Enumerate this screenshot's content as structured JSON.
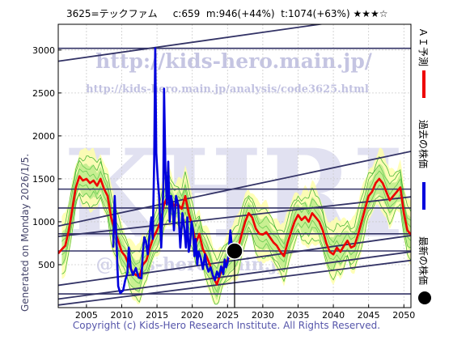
{
  "header": {
    "title": "3625=テックファム",
    "current": "c:659",
    "mid": "m:946(+44%)",
    "top": "t:1074(+63%)",
    "stars": "★★★☆"
  },
  "watermarks": {
    "url_main": "http://kids-hero.main.jp/",
    "url_sub": "http://kids-hero.main.jp/analysis/code3625.html",
    "big": "KHRI",
    "lower": "@kids-hero.main.jp"
  },
  "side_legend": {
    "ai": "ＡＩ予測",
    "past": "過去の株価",
    "latest": "最新の株価"
  },
  "generated": "Generated on Monday 2026/1/5.",
  "footer": "Copyright (c) Kids-Hero Research Institute. All Rights Reserved.",
  "colors": {
    "ai_prediction": "#ee0000",
    "past_price": "#0000dd",
    "band_fill": "#ffffaa",
    "band_lines": "#22aa22",
    "trend_lines": "#333366",
    "latest_marker": "#000000"
  },
  "chart_data": {
    "type": "line",
    "xlim": [
      2001,
      2051
    ],
    "ylim": [
      0,
      3300
    ],
    "x_ticks": [
      2005,
      2010,
      2015,
      2020,
      2025,
      2030,
      2035,
      2040,
      2045,
      2050
    ],
    "y_ticks": [
      500,
      1000,
      1500,
      2000,
      2500,
      3000
    ],
    "grid": true,
    "latest": {
      "x": 2026.0,
      "y": 659
    },
    "horizontal_levels": [
      160,
      660,
      860,
      1160,
      1380,
      3020
    ],
    "trend_lines": [
      {
        "x1": 2001,
        "y1": 2870,
        "x2": 2051,
        "y2": 3450
      },
      {
        "x1": 2001,
        "y1": 950,
        "x2": 2051,
        "y2": 1820
      },
      {
        "x1": 2001,
        "y1": 830,
        "x2": 2051,
        "y2": 1290
      },
      {
        "x1": 2001,
        "y1": 260,
        "x2": 2051,
        "y2": 840
      },
      {
        "x1": 2001,
        "y1": 100,
        "x2": 2051,
        "y2": 650
      },
      {
        "x1": 2001,
        "y1": 30,
        "x2": 2051,
        "y2": 550
      }
    ],
    "series": [
      {
        "name": "過去の株価",
        "color": "#0000dd",
        "points": [
          [
            2008.8,
            700
          ],
          [
            2009.0,
            1300
          ],
          [
            2009.2,
            900
          ],
          [
            2009.5,
            250
          ],
          [
            2009.8,
            170
          ],
          [
            2010.2,
            200
          ],
          [
            2010.5,
            320
          ],
          [
            2010.8,
            400
          ],
          [
            2011.0,
            700
          ],
          [
            2011.3,
            450
          ],
          [
            2011.6,
            380
          ],
          [
            2012.0,
            460
          ],
          [
            2012.4,
            350
          ],
          [
            2012.8,
            340
          ],
          [
            2013.0,
            650
          ],
          [
            2013.2,
            820
          ],
          [
            2013.4,
            780
          ],
          [
            2013.7,
            620
          ],
          [
            2014.0,
            900
          ],
          [
            2014.2,
            1050
          ],
          [
            2014.4,
            800
          ],
          [
            2014.6,
            1700
          ],
          [
            2014.75,
            3020
          ],
          [
            2014.9,
            1800
          ],
          [
            2015.1,
            1500
          ],
          [
            2015.3,
            1300
          ],
          [
            2015.6,
            700
          ],
          [
            2015.9,
            1400
          ],
          [
            2016.0,
            2550
          ],
          [
            2016.2,
            1600
          ],
          [
            2016.4,
            1200
          ],
          [
            2016.6,
            1700
          ],
          [
            2016.8,
            1000
          ],
          [
            2017.0,
            1300
          ],
          [
            2017.2,
            1200
          ],
          [
            2017.4,
            900
          ],
          [
            2017.7,
            1300
          ],
          [
            2018.0,
            1200
          ],
          [
            2018.3,
            700
          ],
          [
            2018.6,
            1100
          ],
          [
            2018.9,
            900
          ],
          [
            2019.1,
            700
          ],
          [
            2019.3,
            1050
          ],
          [
            2019.5,
            650
          ],
          [
            2019.7,
            750
          ],
          [
            2019.9,
            1000
          ],
          [
            2020.1,
            900
          ],
          [
            2020.3,
            600
          ],
          [
            2020.5,
            800
          ],
          [
            2020.7,
            500
          ],
          [
            2020.9,
            650
          ],
          [
            2021.2,
            580
          ],
          [
            2021.5,
            450
          ],
          [
            2021.8,
            620
          ],
          [
            2022.0,
            500
          ],
          [
            2022.3,
            420
          ],
          [
            2022.6,
            470
          ],
          [
            2022.9,
            380
          ],
          [
            2023.2,
            320
          ],
          [
            2023.5,
            420
          ],
          [
            2023.8,
            360
          ],
          [
            2024.1,
            480
          ],
          [
            2024.4,
            390
          ],
          [
            2024.6,
            560
          ],
          [
            2024.8,
            470
          ],
          [
            2025.0,
            520
          ],
          [
            2025.2,
            690
          ],
          [
            2025.4,
            900
          ],
          [
            2025.6,
            720
          ],
          [
            2025.8,
            640
          ],
          [
            2026.0,
            659
          ]
        ]
      },
      {
        "name": "ＡＩ予測",
        "color": "#ee0000",
        "points": [
          [
            2001,
            630
          ],
          [
            2001.5,
            680
          ],
          [
            2002.0,
            720
          ],
          [
            2002.5,
            900
          ],
          [
            2003.0,
            1150
          ],
          [
            2003.5,
            1400
          ],
          [
            2004.0,
            1530
          ],
          [
            2004.5,
            1480
          ],
          [
            2005.0,
            1500
          ],
          [
            2005.5,
            1450
          ],
          [
            2006.0,
            1480
          ],
          [
            2006.5,
            1420
          ],
          [
            2007.0,
            1500
          ],
          [
            2007.5,
            1380
          ],
          [
            2008.0,
            1300
          ],
          [
            2008.5,
            1050
          ],
          [
            2009.0,
            900
          ],
          [
            2009.5,
            780
          ],
          [
            2010.0,
            650
          ],
          [
            2010.5,
            600
          ],
          [
            2011.0,
            500
          ],
          [
            2011.5,
            420
          ],
          [
            2012.0,
            380
          ],
          [
            2012.5,
            360
          ],
          [
            2013.0,
            500
          ],
          [
            2013.5,
            550
          ],
          [
            2014.0,
            700
          ],
          [
            2014.5,
            820
          ],
          [
            2015.0,
            900
          ],
          [
            2015.5,
            1000
          ],
          [
            2016.0,
            1200
          ],
          [
            2016.5,
            1300
          ],
          [
            2017.0,
            1250
          ],
          [
            2017.5,
            1180
          ],
          [
            2018.0,
            1200
          ],
          [
            2018.5,
            1150
          ],
          [
            2019.0,
            1300
          ],
          [
            2019.5,
            1100
          ],
          [
            2020.0,
            950
          ],
          [
            2020.5,
            750
          ],
          [
            2021.0,
            860
          ],
          [
            2021.5,
            680
          ],
          [
            2022.0,
            600
          ],
          [
            2022.5,
            500
          ],
          [
            2023.0,
            350
          ],
          [
            2023.5,
            270
          ],
          [
            2024.0,
            400
          ],
          [
            2024.5,
            480
          ],
          [
            2025.0,
            560
          ],
          [
            2025.5,
            600
          ],
          [
            2026.0,
            650
          ],
          [
            2026.5,
            700
          ],
          [
            2027.0,
            850
          ],
          [
            2027.5,
            1000
          ],
          [
            2028.0,
            1100
          ],
          [
            2028.5,
            1050
          ],
          [
            2029.0,
            920
          ],
          [
            2029.5,
            860
          ],
          [
            2030.0,
            850
          ],
          [
            2030.5,
            880
          ],
          [
            2031.0,
            820
          ],
          [
            2031.5,
            760
          ],
          [
            2032.0,
            720
          ],
          [
            2032.5,
            650
          ],
          [
            2033.0,
            600
          ],
          [
            2033.5,
            750
          ],
          [
            2034.0,
            880
          ],
          [
            2034.5,
            1000
          ],
          [
            2035.0,
            1080
          ],
          [
            2035.5,
            1020
          ],
          [
            2036.0,
            1060
          ],
          [
            2036.5,
            1000
          ],
          [
            2037.0,
            1100
          ],
          [
            2037.5,
            1050
          ],
          [
            2038.0,
            1000
          ],
          [
            2038.5,
            900
          ],
          [
            2039.0,
            750
          ],
          [
            2039.5,
            650
          ],
          [
            2040.0,
            620
          ],
          [
            2040.5,
            700
          ],
          [
            2041.0,
            650
          ],
          [
            2041.5,
            720
          ],
          [
            2042.0,
            780
          ],
          [
            2042.5,
            700
          ],
          [
            2043.0,
            720
          ],
          [
            2043.5,
            850
          ],
          [
            2044.0,
            1000
          ],
          [
            2044.5,
            1150
          ],
          [
            2045.0,
            1300
          ],
          [
            2045.5,
            1350
          ],
          [
            2046.0,
            1450
          ],
          [
            2046.5,
            1500
          ],
          [
            2047.0,
            1450
          ],
          [
            2047.5,
            1350
          ],
          [
            2048.0,
            1250
          ],
          [
            2048.5,
            1300
          ],
          [
            2049.0,
            1350
          ],
          [
            2049.5,
            1400
          ],
          [
            2050.0,
            1100
          ],
          [
            2050.5,
            900
          ],
          [
            2051.0,
            850
          ]
        ]
      }
    ]
  }
}
